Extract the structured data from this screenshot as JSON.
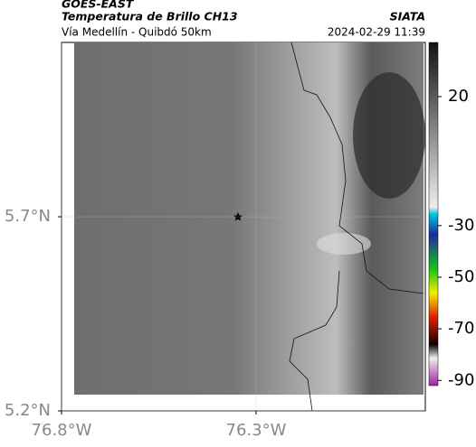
{
  "header": {
    "source": "GOES-EAST",
    "title": "Temperatura de Brillo CH13",
    "brand": "SIATA",
    "subtitle": "Vía Medellín - Quibdó 50km",
    "timestamp": "2024-02-29 11:39"
  },
  "map": {
    "xlim": [
      -76.8,
      -75.865
    ],
    "ylim": [
      5.2,
      6.149
    ],
    "xticks": [
      {
        "value": -76.8,
        "label": "76.8°W"
      },
      {
        "value": -76.3,
        "label": "76.3°W"
      }
    ],
    "yticks": [
      {
        "value": 5.2,
        "label": "5.2°N"
      },
      {
        "value": 5.7,
        "label": "5.7°N"
      }
    ],
    "grid": true
  },
  "colorbar": {
    "clim": [
      -92,
      41
    ],
    "ticks": [
      20,
      -30,
      -50,
      -70,
      -90
    ]
  }
}
